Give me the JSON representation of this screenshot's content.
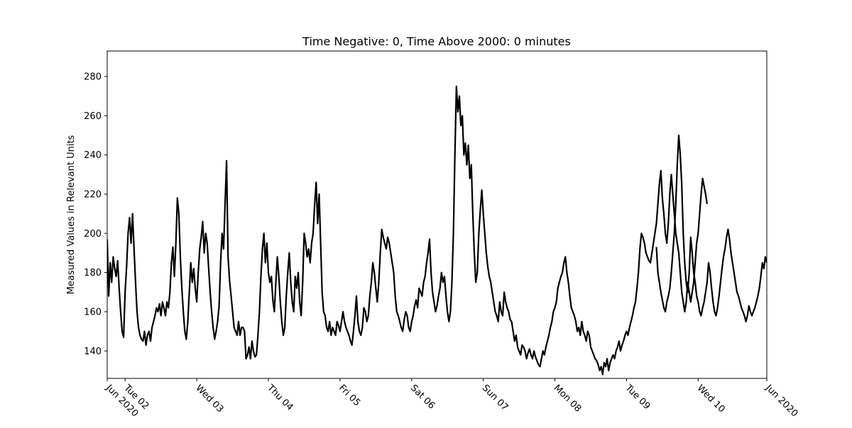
{
  "chart_data": {
    "type": "line",
    "title": "Time Negative: 0, Time Above 2000: 0 minutes",
    "xlabel": "",
    "ylabel": "Measured Values in Relevant Units",
    "xlim": [
      "2020-06-01T18:00",
      "2020-06-10T23:00"
    ],
    "ylim": [
      126,
      293
    ],
    "yticks": [
      140,
      160,
      180,
      200,
      220,
      240,
      260,
      280
    ],
    "xticks": [
      {
        "t": "2020-06-01T18:00",
        "label": "Jun 2020"
      },
      {
        "t": "2020-06-02T00:00",
        "label": "Tue 02"
      },
      {
        "t": "2020-06-03T00:00",
        "label": "Wed 03"
      },
      {
        "t": "2020-06-04T00:00",
        "label": "Thu 04"
      },
      {
        "t": "2020-06-05T00:00",
        "label": "Fri 05"
      },
      {
        "t": "2020-06-06T00:00",
        "label": "Sat 06"
      },
      {
        "t": "2020-06-07T00:00",
        "label": "Sun 07"
      },
      {
        "t": "2020-06-08T00:00",
        "label": "Mon 08"
      },
      {
        "t": "2020-06-09T00:00",
        "label": "Tue 09"
      },
      {
        "t": "2020-06-10T00:00",
        "label": "Wed 10"
      },
      {
        "t": "2020-06-10T23:00",
        "label": "Jun 2020"
      }
    ],
    "grid": false,
    "series": [
      {
        "color": "#000000",
        "segments": [
          {
            "start": "2020-06-01T18:00",
            "step_minutes": 30,
            "values": [
              197,
              168,
              185,
              175,
              188,
              182,
              178,
              186,
              172,
              160,
              150,
              147,
              170,
              183,
              200,
              208,
              195,
              210,
              192,
              175,
              160,
              152,
              148,
              146,
              145,
              150,
              143,
              148,
              150,
              145,
              152,
              155,
              158,
              162,
              160,
              164,
              158,
              165,
              162,
              158,
              165,
              162,
              170,
              185,
              193,
              178,
              195,
              218,
              210,
              188,
              172,
              160,
              150,
              146,
              155,
              170,
              185,
              175,
              182,
              172,
              165,
              180,
              192,
              198,
              206,
              190,
              200,
              195,
              182,
              170,
              160,
              152,
              146,
              150,
              155,
              163,
              185,
              200,
              192,
              215,
              237,
              188,
              176,
              168,
              160,
              152,
              150,
              148,
              155,
              148,
              152,
              152,
              150,
              136,
              138,
              142,
              136,
              145,
              140,
              137,
              138,
              148,
              160,
              178,
              192,
              200,
              185,
              195,
              180,
              175,
              178,
              166,
              160,
              175,
              188,
              178,
              165,
              155,
              148,
              152,
              168,
              180,
              190,
              175,
              165,
              160,
              178,
              172,
              180,
              165,
              158,
              175,
              200,
              195,
              188,
              192,
              185,
              195,
              200,
              215,
              226,
              205,
              220,
              195,
              170,
              160,
              158,
              152,
              150,
              155,
              148,
              152,
              150,
              148,
              155,
              153,
              150,
              155,
              160,
              155,
              152,
              150,
              148,
              145,
              143,
              150,
              158,
              168,
              155,
              150,
              148,
              152,
              162,
              160,
              155,
              158,
              168,
              175,
              185,
              180,
              172,
              165,
              175,
              190,
              202,
              198,
              195,
              192,
              198,
              195,
              190,
              185,
              180,
              168,
              160,
              158,
              155,
              152,
              150,
              156,
              160,
              158,
              152,
              150,
              155,
              158,
              163,
              166,
              162,
              172,
              170,
              168,
              175,
              178,
              185,
              190,
              197,
              180,
              170,
              165,
              160,
              163,
              168,
              172,
              180,
              175,
              178,
              168,
              160,
              155,
              160,
              175,
              200,
              240,
              275,
              262,
              270,
              255,
              260,
              240,
              246,
              235,
              245,
              228,
              235,
              210,
              190,
              175,
              180,
              200,
              212,
              222,
              210,
              200,
              190,
              183,
              178,
              175,
              170,
              165,
              160,
              158,
              155,
              165,
              160,
              158,
              170,
              165,
              162,
              160,
              156,
              155,
              150,
              145,
              148,
              142,
              140,
              138,
              143,
              142,
              140,
              136,
              139,
              141,
              138,
              136,
              140,
              137,
              135,
              133,
              132,
              136,
              140,
              138,
              142,
              145,
              148,
              152,
              155,
              160,
              162,
              165,
              172,
              175,
              178,
              180,
              185,
              188,
              180,
              175,
              168,
              162,
              160,
              158,
              155,
              150,
              152,
              148,
              155,
              150,
              148,
              145,
              150,
              148,
              142,
              140,
              138,
              136,
              135,
              133,
              130,
              132,
              128,
              134,
              132,
              136,
              130,
              134,
              136,
              138,
              136,
              140,
              142,
              145,
              140,
              143,
              145,
              148,
              150,
              148,
              152,
              155,
              158,
              162,
              165,
              172,
              180,
              192,
              200,
              198,
              195,
              190,
              188,
              186,
              185,
              190,
              195,
              200,
              205,
              215,
              225,
              232,
              218,
              210,
              200,
              195,
              205,
              220,
              230,
              220,
              210,
              200,
              195,
              190,
              180,
              170,
              165,
              160,
              165,
              175,
              170,
              165,
              170,
              175,
              185,
              195,
              200,
              210,
              220,
              228,
              224,
              220,
              215
            ]
          },
          {
            "start": "2020-06-09T10:00",
            "step_minutes": 30,
            "values": [
              193,
              180,
              175,
              170,
              166,
              162,
              160,
              165,
              168,
              172,
              180,
              190,
              200,
              215,
              235,
              250,
              240,
              225,
              200,
              185,
              175,
              170,
              180,
              198,
              190,
              180,
              175,
              168,
              165,
              160,
              158,
              162,
              165,
              170,
              175,
              185,
              180,
              172,
              165,
              160,
              158,
              162,
              168,
              175,
              182,
              188,
              192,
              198,
              202,
              197,
              190,
              185,
              180,
              175,
              170,
              168,
              165,
              162,
              160,
              158,
              155,
              158,
              163,
              160,
              158,
              160,
              162,
              165,
              168,
              172,
              178,
              185,
              182,
              188,
              185
            ]
          }
        ]
      }
    ]
  }
}
